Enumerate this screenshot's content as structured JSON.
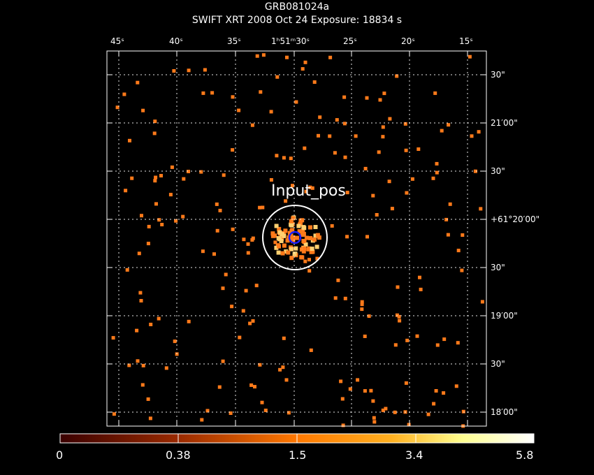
{
  "header": {
    "title": "GRB081024a",
    "subtitle": "SWIFT XRT   2008 Oct 24    Exposure: 18834 s"
  },
  "axes": {
    "ra_ticks": [
      "45ˢ",
      "40ˢ",
      "35ˢ",
      "1ʰ51ᵐ30ˢ",
      "25ˢ",
      "20ˢ",
      "15ˢ"
    ],
    "dec_ticks": [
      "30\"",
      "21′00\"",
      "30\"",
      "+61°20′00\"",
      "30\"",
      "19′00\"",
      "30\"",
      "18′00\""
    ]
  },
  "source_label": "Input_pos",
  "colorbar": {
    "ticks": [
      "0",
      "0.38",
      "1.5",
      "3.4",
      "5.8"
    ],
    "colors": [
      "#ffffff",
      "#5a0000",
      "#b83000",
      "#ff6a00",
      "#ffb000",
      "#ffff80",
      "#ffffff"
    ]
  },
  "colors": {
    "background": "#000000",
    "photon": "#ff7a1a",
    "photon_bright": "#ffd070",
    "circle": "#ffffff",
    "marker": "#1a20ff",
    "grid": "#ffffff"
  }
}
